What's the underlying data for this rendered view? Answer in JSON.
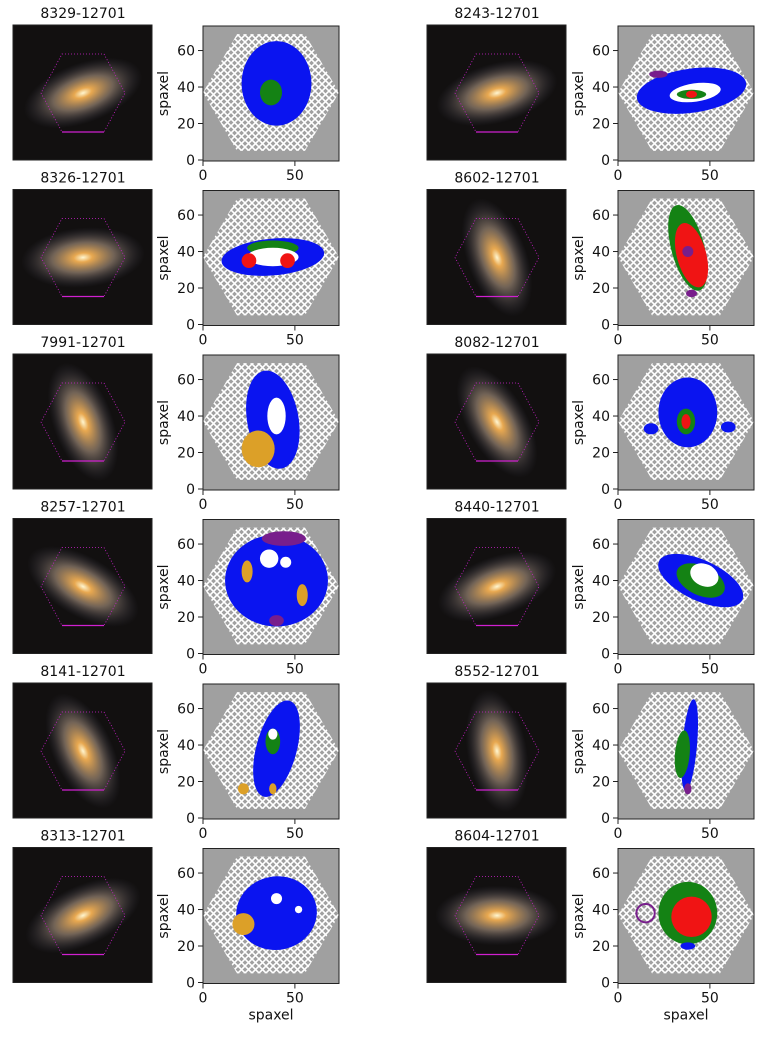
{
  "chart_data": [
    {
      "type": "map",
      "title": "8329-12701",
      "ylabel": "spaxel",
      "xlim": [
        0,
        74
      ],
      "ylim": [
        0,
        74
      ],
      "xticks": [
        0,
        50
      ],
      "yticks": [
        0,
        20,
        40,
        60
      ]
    },
    {
      "type": "map",
      "title": "8243-12701",
      "ylabel": "spaxel",
      "xlim": [
        0,
        74
      ],
      "ylim": [
        0,
        74
      ],
      "xticks": [
        0,
        50
      ],
      "yticks": [
        0,
        20,
        40,
        60
      ]
    },
    {
      "type": "map",
      "title": "8326-12701",
      "ylabel": "spaxel",
      "xlim": [
        0,
        74
      ],
      "ylim": [
        0,
        74
      ],
      "xticks": [
        0,
        50
      ],
      "yticks": [
        0,
        20,
        40,
        60
      ]
    },
    {
      "type": "map",
      "title": "8602-12701",
      "ylabel": "spaxel",
      "xlim": [
        0,
        74
      ],
      "ylim": [
        0,
        74
      ],
      "xticks": [
        0,
        50
      ],
      "yticks": [
        0,
        20,
        40,
        60
      ]
    },
    {
      "type": "map",
      "title": "7991-12701",
      "ylabel": "spaxel",
      "xlim": [
        0,
        74
      ],
      "ylim": [
        0,
        74
      ],
      "xticks": [
        0,
        50
      ],
      "yticks": [
        0,
        20,
        40,
        60
      ]
    },
    {
      "type": "map",
      "title": "8082-12701",
      "ylabel": "spaxel",
      "xlim": [
        0,
        74
      ],
      "ylim": [
        0,
        74
      ],
      "xticks": [
        0,
        50
      ],
      "yticks": [
        0,
        20,
        40,
        60
      ]
    },
    {
      "type": "map",
      "title": "8257-12701",
      "ylabel": "spaxel",
      "xlim": [
        0,
        74
      ],
      "ylim": [
        0,
        74
      ],
      "xticks": [
        0,
        50
      ],
      "yticks": [
        0,
        20,
        40,
        60
      ]
    },
    {
      "type": "map",
      "title": "8440-12701",
      "ylabel": "spaxel",
      "xlim": [
        0,
        74
      ],
      "ylim": [
        0,
        74
      ],
      "xticks": [
        0,
        50
      ],
      "yticks": [
        0,
        20,
        40,
        60
      ]
    },
    {
      "type": "map",
      "title": "8141-12701",
      "ylabel": "spaxel",
      "xlim": [
        0,
        74
      ],
      "ylim": [
        0,
        74
      ],
      "xticks": [
        0,
        50
      ],
      "yticks": [
        0,
        20,
        40,
        60
      ]
    },
    {
      "type": "map",
      "title": "8552-12701",
      "ylabel": "spaxel",
      "xlim": [
        0,
        74
      ],
      "ylim": [
        0,
        74
      ],
      "xticks": [
        0,
        50
      ],
      "yticks": [
        0,
        20,
        40,
        60
      ]
    },
    {
      "type": "map",
      "title": "8313-12701",
      "ylabel": "spaxel",
      "xlabel": "spaxel",
      "xlim": [
        0,
        74
      ],
      "ylim": [
        0,
        74
      ],
      "xticks": [
        0,
        50
      ],
      "yticks": [
        0,
        20,
        40,
        60
      ]
    },
    {
      "type": "map",
      "title": "8604-12701",
      "ylabel": "spaxel",
      "xlabel": "spaxel",
      "xlim": [
        0,
        74
      ],
      "ylim": [
        0,
        74
      ],
      "xticks": [
        0,
        50
      ],
      "yticks": [
        0,
        20,
        40,
        60
      ]
    }
  ]
}
